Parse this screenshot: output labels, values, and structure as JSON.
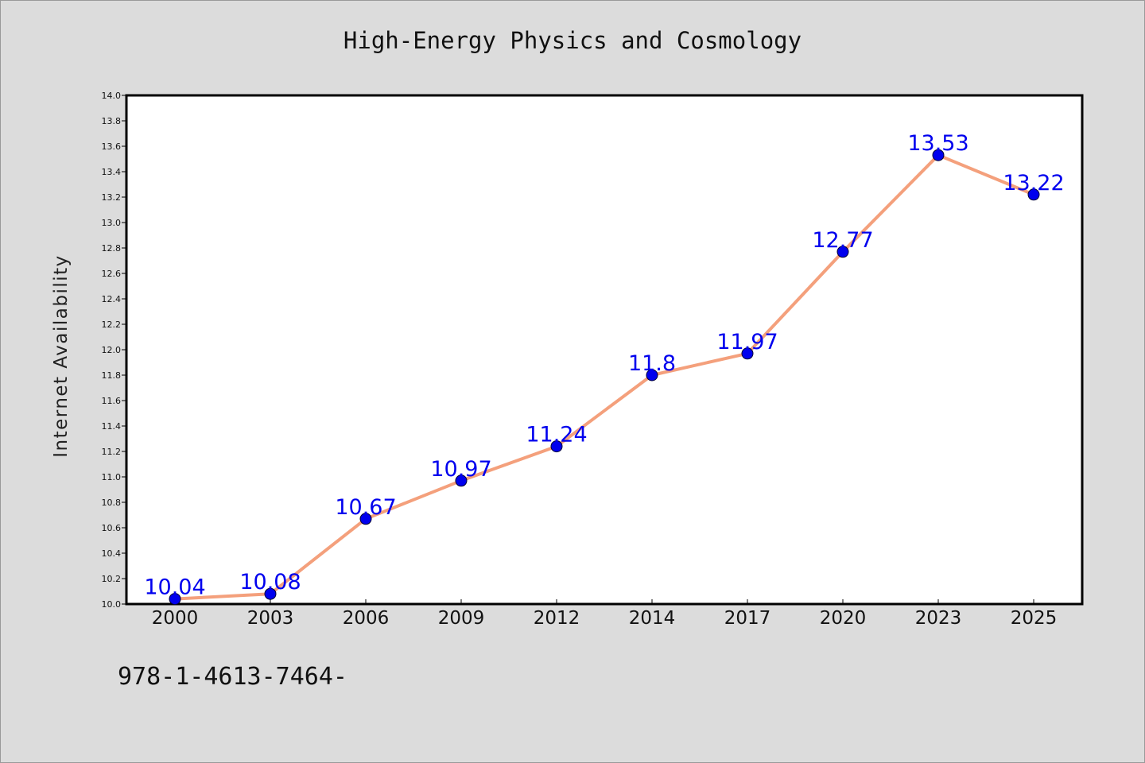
{
  "chart_data": {
    "type": "line",
    "title": "High-Energy Physics and Cosmology",
    "xlabel": "",
    "ylabel": "Internet Availability",
    "categories": [
      "2000",
      "2003",
      "2006",
      "2009",
      "2012",
      "2014",
      "2017",
      "2020",
      "2023",
      "2025"
    ],
    "values": [
      10.04,
      10.08,
      10.67,
      10.97,
      11.24,
      11.8,
      11.97,
      12.77,
      13.53,
      13.22
    ],
    "data_labels": [
      "10.04",
      "10.08",
      "10.67",
      "10.97",
      "11.24",
      "11.8",
      "11.97",
      "12.77",
      "13.53",
      "13.22"
    ],
    "ylim": [
      10.0,
      14.0
    ],
    "y_ticks": [
      "10.0",
      "10.2",
      "10.4",
      "10.6",
      "10.8",
      "11.0",
      "11.2",
      "11.4",
      "11.6",
      "11.8",
      "12.0",
      "12.2",
      "12.4",
      "12.6",
      "12.8",
      "13.0",
      "13.2",
      "13.4",
      "13.6",
      "13.8",
      "14.0"
    ],
    "grid": false,
    "legend": "none",
    "line_color": "#f4a07c",
    "marker_color": "#0000ee",
    "label_color": "#0000ee"
  },
  "footer_text": "978-1-4613-7464-"
}
